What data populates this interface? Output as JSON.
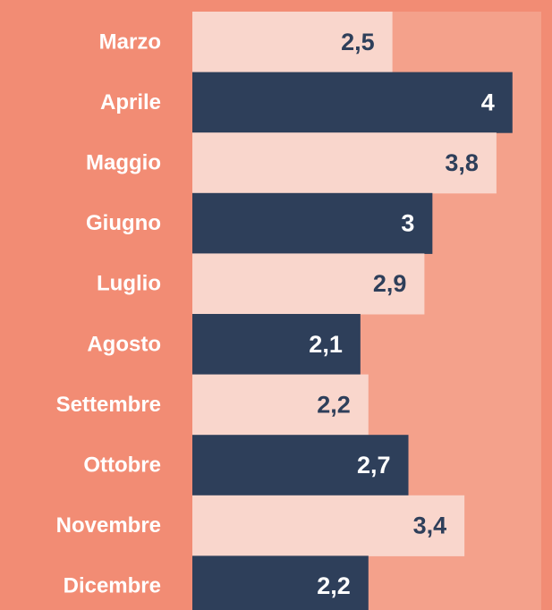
{
  "chart_data": {
    "type": "barh",
    "categories": [
      "Marzo",
      "Aprile",
      "Maggio",
      "Giugno",
      "Luglio",
      "Agosto",
      "Settembre",
      "Ottobre",
      "Novembre",
      "Dicembre"
    ],
    "values": [
      2.5,
      4,
      3.8,
      3,
      2.9,
      2.1,
      2.2,
      2.7,
      3.4,
      2.2
    ],
    "value_labels": [
      "2,5",
      "4",
      "3,8",
      "3",
      "2,9",
      "2,1",
      "2,2",
      "2,7",
      "3,4",
      "2,2"
    ],
    "colors": [
      "#f9d6cc",
      "#2e3f5a"
    ],
    "label_colors": [
      "#2e3f5a",
      "#ffffff"
    ],
    "background": "#f28c74",
    "plot_background": "#f4a18b",
    "xlim": [
      0,
      4.36
    ]
  }
}
